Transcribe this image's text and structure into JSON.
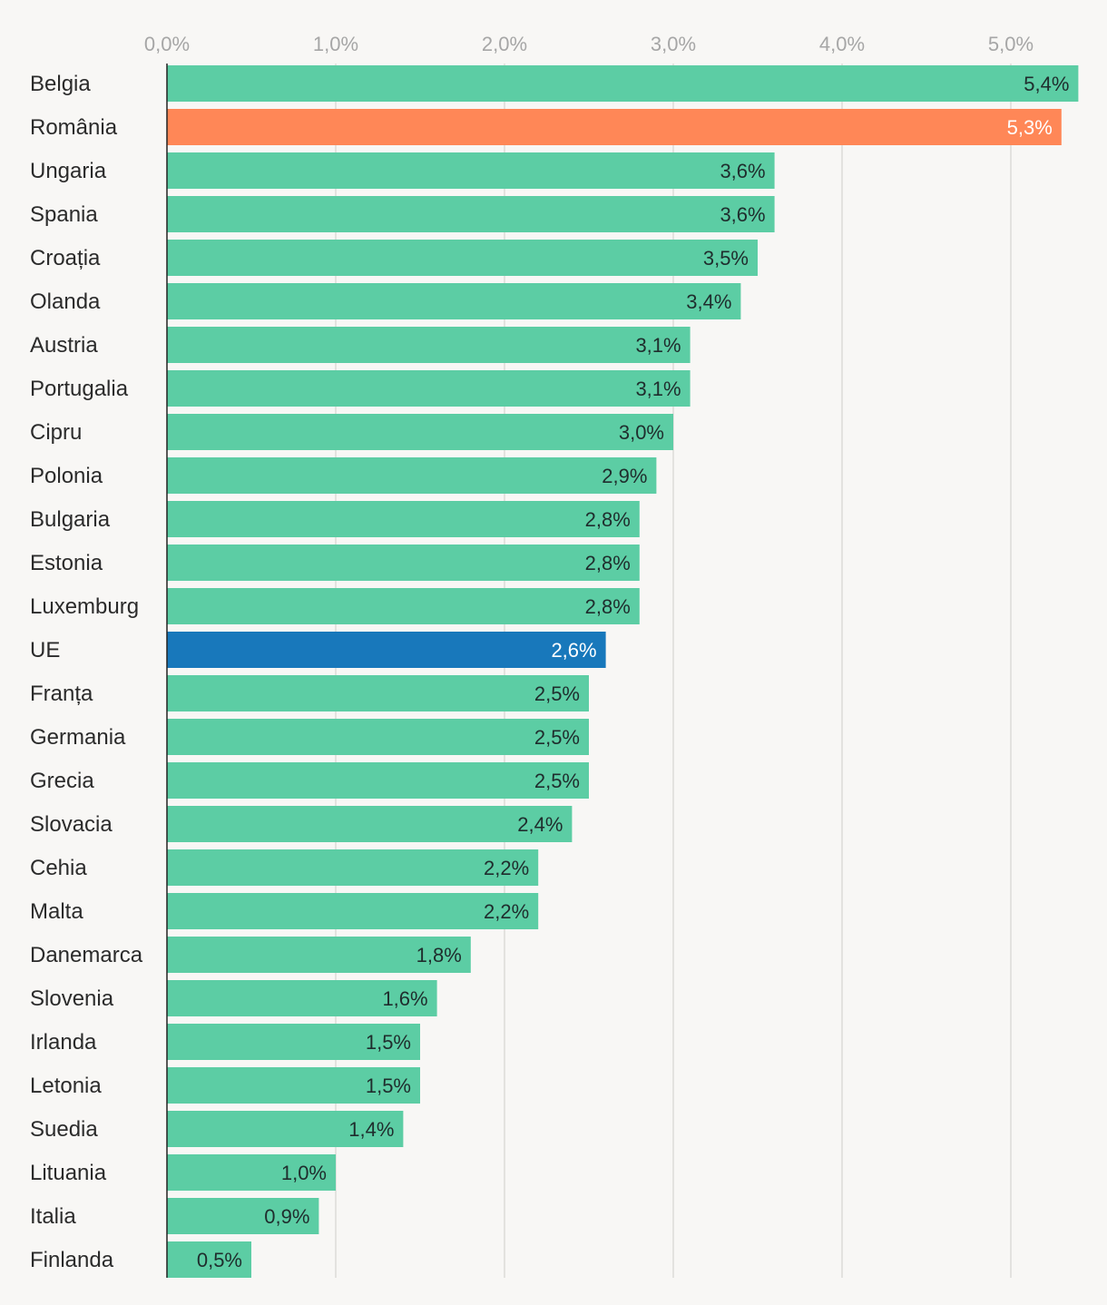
{
  "chart_data": {
    "type": "bar",
    "orientation": "horizontal",
    "title": "",
    "xlabel": "",
    "ylabel": "",
    "xlim": [
      0,
      5.4
    ],
    "xticks": [
      0,
      1,
      2,
      3,
      4,
      5
    ],
    "xtick_labels": [
      "0,0%",
      "1,0%",
      "2,0%",
      "3,0%",
      "4,0%",
      "5,0%"
    ],
    "tick_position": "top",
    "grid": true,
    "categories": [
      "Belgia",
      "România",
      "Ungaria",
      "Spania",
      "Croația",
      "Olanda",
      "Austria",
      "Portugalia",
      "Cipru",
      "Polonia",
      "Bulgaria",
      "Estonia",
      "Luxemburg",
      "UE",
      "Franța",
      "Germania",
      "Grecia",
      "Slovacia",
      "Cehia",
      "Malta",
      "Danemarca",
      "Slovenia",
      "Irlanda",
      "Letonia",
      "Suedia",
      "Lituania",
      "Italia",
      "Finlanda"
    ],
    "values": [
      5.4,
      5.3,
      3.6,
      3.6,
      3.5,
      3.4,
      3.1,
      3.1,
      3.0,
      2.9,
      2.8,
      2.8,
      2.8,
      2.6,
      2.5,
      2.5,
      2.5,
      2.4,
      2.2,
      2.2,
      1.8,
      1.6,
      1.5,
      1.5,
      1.4,
      1.0,
      0.9,
      0.5
    ],
    "value_labels": [
      "5,4%",
      "5,3%",
      "3,6%",
      "3,6%",
      "3,5%",
      "3,4%",
      "3,1%",
      "3,1%",
      "3,0%",
      "2,9%",
      "2,8%",
      "2,8%",
      "2,8%",
      "2,6%",
      "2,5%",
      "2,5%",
      "2,5%",
      "2,4%",
      "2,2%",
      "2,2%",
      "1,8%",
      "1,6%",
      "1,5%",
      "1,5%",
      "1,4%",
      "1,0%",
      "0,9%",
      "0,5%"
    ],
    "colors": {
      "default": "#5ccda4",
      "highlights": {
        "România": "#ff8757",
        "UE": "#1878bb"
      },
      "label_dark": "#1f2d2d",
      "label_light": "#ffffff"
    }
  }
}
